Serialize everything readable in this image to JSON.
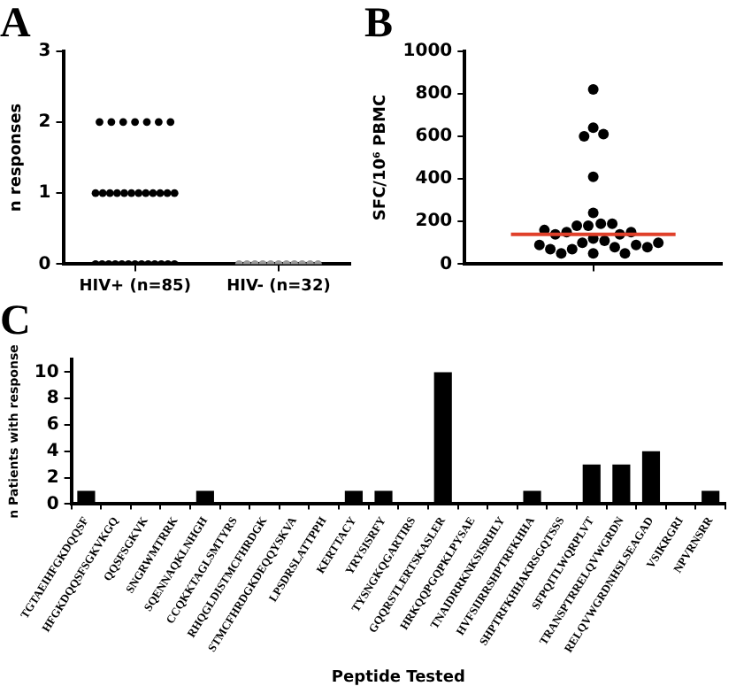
{
  "chart_data": [
    {
      "type": "scatter",
      "title": "A",
      "ylabel": "n responses",
      "categories": [
        "HIV+ (n=85)",
        "HIV- (n=32)"
      ],
      "ylim": [
        0,
        3
      ],
      "yticks": [
        0,
        1,
        2,
        3
      ],
      "grid": false,
      "marker": "circle",
      "series": [
        {
          "color": "#000000",
          "x": [
            "HIV+ (n=85)",
            "HIV+ (n=85)",
            "HIV+ (n=85)",
            "HIV+ (n=85)",
            "HIV+ (n=85)",
            "HIV+ (n=85)",
            "HIV+ (n=85)",
            "HIV+ (n=85)",
            "HIV+ (n=85)",
            "HIV+ (n=85)",
            "HIV+ (n=85)",
            "HIV+ (n=85)",
            "HIV+ (n=85)",
            "HIV+ (n=85)",
            "HIV+ (n=85)",
            "HIV+ (n=85)",
            "HIV+ (n=85)",
            "HIV+ (n=85)",
            "HIV+ (n=85)",
            "HIV+ (n=85)",
            "HIV+ (n=85)",
            "HIV+ (n=85)",
            "HIV+ (n=85)",
            "HIV+ (n=85)",
            "HIV+ (n=85)",
            "HIV+ (n=85)",
            "HIV+ (n=85)",
            "HIV+ (n=85)",
            "HIV+ (n=85)",
            "HIV+ (n=85)",
            "HIV+ (n=85)",
            "HIV+ (n=85)",
            "HIV+ (n=85)",
            "HIV+ (n=85)",
            "HIV+ (n=85)",
            "HIV+ (n=85)",
            "HIV+ (n=85)",
            "HIV+ (n=85)",
            "HIV+ (n=85)",
            "HIV+ (n=85)",
            "HIV+ (n=85)",
            "HIV+ (n=85)",
            "HIV+ (n=85)",
            "HIV+ (n=85)",
            "HIV+ (n=85)",
            "HIV+ (n=85)",
            "HIV+ (n=85)",
            "HIV+ (n=85)",
            "HIV+ (n=85)",
            "HIV+ (n=85)",
            "HIV+ (n=85)",
            "HIV+ (n=85)",
            "HIV+ (n=85)",
            "HIV+ (n=85)",
            "HIV+ (n=85)",
            "HIV+ (n=85)",
            "HIV+ (n=85)",
            "HIV+ (n=85)",
            "HIV+ (n=85)",
            "HIV+ (n=85)",
            "HIV+ (n=85)",
            "HIV+ (n=85)",
            "HIV+ (n=85)",
            "HIV+ (n=85)",
            "HIV+ (n=85)",
            "HIV+ (n=85)",
            "HIV+ (n=85)",
            "HIV+ (n=85)",
            "HIV+ (n=85)",
            "HIV+ (n=85)",
            "HIV+ (n=85)",
            "HIV+ (n=85)",
            "HIV+ (n=85)",
            "HIV+ (n=85)",
            "HIV+ (n=85)",
            "HIV+ (n=85)",
            "HIV+ (n=85)",
            "HIV+ (n=85)",
            "HIV+ (n=85)",
            "HIV+ (n=85)",
            "HIV+ (n=85)",
            "HIV+ (n=85)",
            "HIV+ (n=85)",
            "HIV+ (n=85)",
            "HIV+ (n=85)"
          ],
          "values": [
            2,
            2,
            2,
            2,
            2,
            2,
            2,
            1,
            1,
            1,
            1,
            1,
            1,
            1,
            1,
            1,
            1,
            1,
            1,
            0,
            0,
            0,
            0,
            0,
            0,
            0,
            0,
            0,
            0,
            0,
            0,
            0,
            null,
            null,
            null,
            null,
            null,
            null,
            null,
            null,
            null,
            null,
            null,
            null,
            null,
            null,
            null,
            null,
            null,
            null,
            null,
            null,
            null,
            null,
            null,
            null,
            null,
            null,
            null,
            null,
            null,
            null,
            null,
            null,
            null,
            null,
            null,
            null,
            null,
            null,
            null,
            null,
            null,
            null,
            null,
            null,
            null,
            null,
            null,
            null,
            null,
            null,
            null,
            null,
            null
          ]
        },
        {
          "color": "#999999",
          "x": [
            "HIV- (n=32)",
            "HIV- (n=32)",
            "HIV- (n=32)",
            "HIV- (n=32)",
            "HIV- (n=32)",
            "HIV- (n=32)",
            "HIV- (n=32)",
            "HIV- (n=32)",
            "HIV- (n=32)",
            "HIV- (n=32)",
            "HIV- (n=32)",
            "HIV- (n=32)",
            "HIV- (n=32)",
            "HIV- (n=32)",
            "HIV- (n=32)",
            "HIV- (n=32)",
            "HIV- (n=32)",
            "HIV- (n=32)",
            "HIV- (n=32)",
            "HIV- (n=32)",
            "HIV- (n=32)",
            "HIV- (n=32)",
            "HIV- (n=32)",
            "HIV- (n=32)",
            "HIV- (n=32)",
            "HIV- (n=32)",
            "HIV- (n=32)",
            "HIV- (n=32)",
            "HIV- (n=32)",
            "HIV- (n=32)",
            "HIV- (n=32)",
            "HIV- (n=32)"
          ],
          "values": [
            0,
            0,
            0,
            0,
            0,
            0,
            0,
            0,
            0,
            0,
            0,
            null,
            null,
            null,
            null,
            null,
            null,
            null,
            null,
            null,
            null,
            null,
            null,
            null,
            null,
            null,
            null,
            null,
            null,
            null,
            null,
            null
          ]
        }
      ]
    },
    {
      "type": "scatter",
      "title": "B",
      "ylabel": "SFC/10⁶ PBMC",
      "categories": [
        null
      ],
      "ylim": [
        0,
        1000
      ],
      "yticks": [
        0,
        200,
        400,
        600,
        800,
        1000
      ],
      "grid": false,
      "marker": "circle",
      "ref_lines": [
        {
          "axis": "y",
          "value": 140,
          "color": "#e0402a"
        }
      ],
      "series": [
        {
          "color": "#000000",
          "x": [
            null,
            null,
            null,
            null,
            null,
            null,
            null,
            null,
            null,
            null,
            null,
            null,
            null,
            null,
            null,
            null,
            null,
            null,
            null,
            null,
            null,
            null,
            null,
            null,
            null,
            null,
            null,
            null
          ],
          "values": [
            820,
            640,
            610,
            600,
            410,
            240,
            190,
            180,
            180,
            190,
            150,
            140,
            120,
            110,
            140,
            150,
            160,
            100,
            90,
            80,
            70,
            50,
            50,
            50,
            70,
            80,
            90,
            100
          ]
        }
      ]
    },
    {
      "type": "bar",
      "title": "C",
      "ylabel": "n Patients with response",
      "xlabel": "Peptide Tested",
      "ylim": [
        0,
        11
      ],
      "yticks": [
        0,
        2,
        4,
        6,
        8,
        10
      ],
      "grid": false,
      "color": "#000000",
      "categories": [
        "TGTAEIHFGKDQQSF",
        "HFGKDQQSFSGKVKGQ",
        "QQSFSGKVK",
        "SNGRWMTRRK",
        "SQENNAQKLNHGH",
        "CCQKKTAGLSMTYRS",
        "RHQGLDISTMCFHRDGK",
        "STMCFHRDGKDEQQYSKVA",
        "LPSDRSLATTPPH",
        "KERTTACY",
        "YRYSISRFY",
        "TYSNGKQGARTIRS",
        "GQQRSTLERTSKASLER",
        "HRKQQPGQPKLPYSAE",
        "TNAIDRRKNKSISRHLY",
        "HVFSIIRRSHPTRFKHHA",
        "SHPTRFKHHAKRSGQTSSS",
        "SFPQITLWQRPLVT",
        "TRANSPTRRELQVWGRDN",
        "RELQVWGRDNHSLSEAGAD",
        "VSIKRGRI",
        "NPVRNSRR"
      ],
      "values": [
        1,
        0,
        0,
        0,
        1,
        0,
        0,
        0,
        0,
        1,
        1,
        0,
        10,
        0,
        0,
        1,
        0,
        3,
        3,
        4,
        0,
        1
      ]
    }
  ]
}
